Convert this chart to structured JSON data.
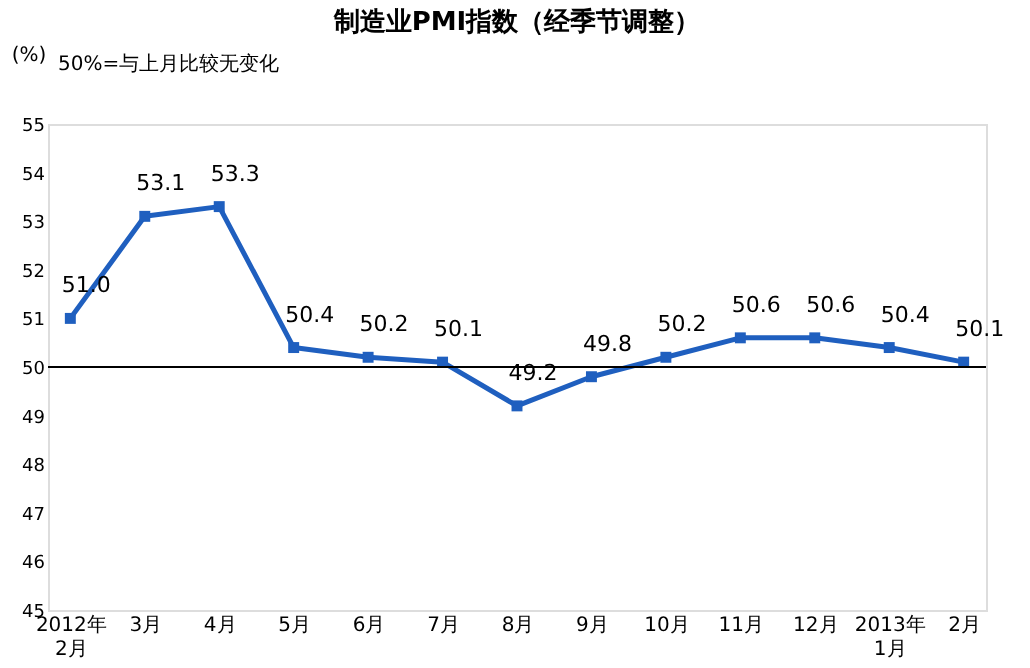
{
  "chart_data": {
    "type": "line",
    "title": "制造业PMI指数（经季节调整）",
    "ylabel": "(%)",
    "annotations": [
      "50%=与上月比较无变化"
    ],
    "categories": [
      "2012年\n2月",
      "3月",
      "4月",
      "5月",
      "6月",
      "7月",
      "8月",
      "9月",
      "10月",
      "11月",
      "12月",
      "2013年\n1月",
      "2月"
    ],
    "series": [
      {
        "color": "#1f5fbf",
        "values": [
          51.0,
          53.1,
          53.3,
          50.4,
          50.2,
          50.1,
          49.2,
          49.8,
          50.2,
          50.6,
          50.6,
          50.4,
          50.1
        ]
      }
    ],
    "ylim": [
      45,
      55
    ],
    "yticks": [
      45,
      46,
      47,
      48,
      49,
      50,
      51,
      52,
      53,
      54,
      55
    ],
    "ref_lines": [
      {
        "axis": "y",
        "value": 50,
        "color": "#000000"
      }
    ],
    "value_labels": [
      "51.0",
      "53.1",
      "53.3",
      "50.4",
      "50.2",
      "50.1",
      "49.2",
      "49.8",
      "50.2",
      "50.6",
      "50.6",
      "50.4",
      "50.1"
    ],
    "marker": "square",
    "grid": false
  }
}
